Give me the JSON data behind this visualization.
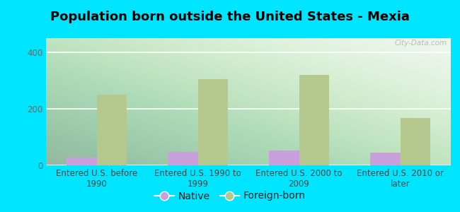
{
  "title": "Population born outside the United States - Mexia",
  "categories": [
    "Entered U.S. before\n1990",
    "Entered U.S. 1990 to\n1999",
    "Entered U.S. 2000 to\n2009",
    "Entered U.S. 2010 or\nlater"
  ],
  "native_values": [
    28,
    48,
    52,
    45
  ],
  "foreign_values": [
    250,
    305,
    320,
    168
  ],
  "native_color": "#c9a0dc",
  "foreign_color": "#b5c98e",
  "background_color": "#00e5ff",
  "ylim": [
    0,
    450
  ],
  "yticks": [
    0,
    200,
    400
  ],
  "bar_width": 0.3,
  "title_fontsize": 13,
  "tick_fontsize": 8.5,
  "legend_fontsize": 10,
  "watermark": "City-Data.com"
}
